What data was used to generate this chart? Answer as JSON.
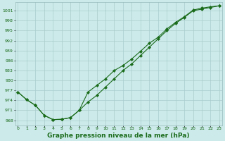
{
  "line1_x": [
    0,
    1,
    2,
    3,
    4,
    5,
    6,
    7,
    8,
    9,
    10,
    11,
    12,
    13,
    14,
    15,
    16,
    17,
    18,
    19,
    20,
    21,
    22,
    23
  ],
  "line1_y": [
    976.5,
    974.2,
    972.5,
    969.5,
    968.2,
    968.3,
    968.8,
    971.0,
    973.5,
    975.5,
    978.0,
    980.5,
    983.0,
    985.0,
    987.5,
    990.0,
    992.5,
    995.0,
    997.2,
    999.0,
    1001.0,
    1001.5,
    1002.0,
    1002.5
  ],
  "line2_x": [
    0,
    1,
    2,
    3,
    4,
    5,
    6,
    7,
    8,
    9,
    10,
    11,
    12,
    13,
    14,
    15,
    16,
    17,
    18,
    19,
    20,
    21,
    22,
    23
  ],
  "line2_y": [
    976.5,
    974.2,
    972.5,
    969.5,
    968.2,
    968.3,
    968.8,
    971.0,
    976.5,
    978.5,
    980.5,
    983.0,
    984.5,
    986.5,
    988.8,
    991.2,
    993.0,
    995.5,
    997.5,
    999.2,
    1001.2,
    1001.8,
    1002.2,
    1002.5
  ],
  "line_color": "#1a6b1a",
  "marker": "D",
  "marker_size": 2.2,
  "background_color": "#cceaea",
  "grid_color": "#aacccc",
  "xlabel": "Graphe pression niveau de la mer (hPa)",
  "xlabel_color": "#1a6b1a",
  "xlabel_fontsize": 6.5,
  "ylabel_ticks": [
    968,
    971,
    974,
    977,
    980,
    983,
    986,
    989,
    992,
    995,
    998,
    1001
  ],
  "xtick_labels": [
    "0",
    "1",
    "2",
    "3",
    "4",
    "5",
    "6",
    "7",
    "8",
    "9",
    "10",
    "11",
    "12",
    "13",
    "14",
    "15",
    "16",
    "17",
    "18",
    "19",
    "20",
    "21",
    "22",
    "23"
  ],
  "xticks": [
    0,
    1,
    2,
    3,
    4,
    5,
    6,
    7,
    8,
    9,
    10,
    11,
    12,
    13,
    14,
    15,
    16,
    17,
    18,
    19,
    20,
    21,
    22,
    23
  ],
  "ylim": [
    966.5,
    1003.5
  ],
  "xlim": [
    -0.3,
    23.3
  ]
}
